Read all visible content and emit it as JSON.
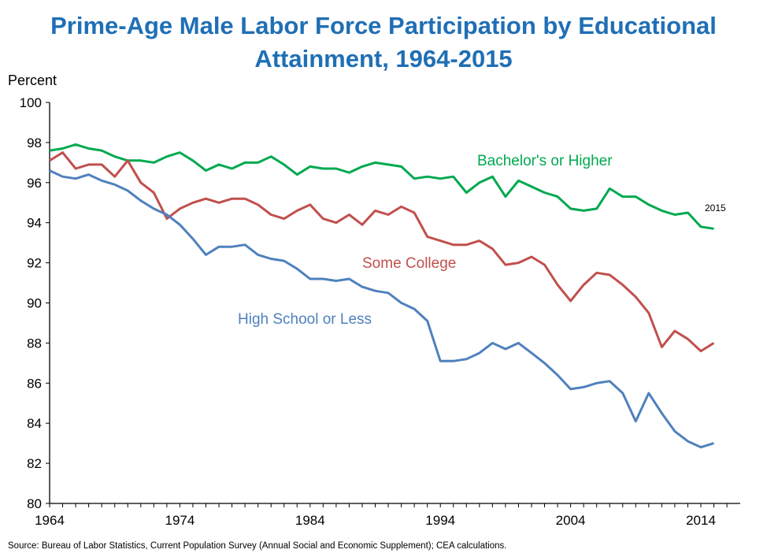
{
  "chart_data": {
    "type": "line",
    "title": "Prime-Age Male Labor Force Participation by Educational Attainment, 1964-2015",
    "title_lines": [
      "Prime-Age Male Labor Force Participation by Educational",
      "Attainment, 1964-2015"
    ],
    "ylabel": "Percent",
    "xlabel": "",
    "ylim": [
      80,
      100
    ],
    "xlim": [
      1964,
      2016
    ],
    "yticks": [
      80,
      82,
      84,
      86,
      88,
      90,
      92,
      94,
      96,
      98,
      100
    ],
    "xticks": [
      1964,
      1974,
      1984,
      1994,
      2004,
      2014
    ],
    "grid": false,
    "annotation": "2015",
    "x_start": 1964,
    "series": [
      {
        "name": "Bachelor's or Higher",
        "color": "#00A94F",
        "values": [
          97.6,
          97.7,
          97.9,
          97.7,
          97.6,
          97.3,
          97.1,
          97.1,
          97.0,
          97.3,
          97.5,
          97.1,
          96.6,
          96.9,
          96.7,
          97.0,
          97.0,
          97.3,
          96.9,
          96.4,
          96.8,
          96.7,
          96.7,
          96.5,
          96.8,
          97.0,
          96.9,
          96.8,
          96.2,
          96.3,
          96.2,
          96.3,
          95.5,
          96.0,
          96.3,
          95.3,
          96.1,
          95.8,
          95.5,
          95.3,
          94.7,
          94.6,
          94.7,
          95.7,
          95.3,
          95.3,
          94.9,
          94.6,
          94.4,
          94.5,
          93.8,
          93.7
        ]
      },
      {
        "name": "Some College",
        "color": "#C0504D",
        "values": [
          97.1,
          97.5,
          96.7,
          96.9,
          96.9,
          96.3,
          97.1,
          96.0,
          95.5,
          94.2,
          94.7,
          95.0,
          95.2,
          95.0,
          95.2,
          95.2,
          94.9,
          94.4,
          94.2,
          94.6,
          94.9,
          94.2,
          94.0,
          94.4,
          93.9,
          94.6,
          94.4,
          94.8,
          94.5,
          93.3,
          93.1,
          92.9,
          92.9,
          93.1,
          92.7,
          91.9,
          92.0,
          92.3,
          91.9,
          90.9,
          90.1,
          90.9,
          91.5,
          91.4,
          90.9,
          90.3,
          89.5,
          87.8,
          88.6,
          88.2,
          87.6,
          88.0
        ]
      },
      {
        "name": "High School or Less",
        "color": "#4F81BD",
        "values": [
          96.6,
          96.3,
          96.2,
          96.4,
          96.1,
          95.9,
          95.6,
          95.1,
          94.7,
          94.4,
          93.9,
          93.2,
          92.4,
          92.8,
          92.8,
          92.9,
          92.4,
          92.2,
          92.1,
          91.7,
          91.2,
          91.2,
          91.1,
          91.2,
          90.8,
          90.6,
          90.5,
          90.0,
          89.7,
          89.1,
          87.1,
          87.1,
          87.2,
          87.5,
          88.0,
          87.7,
          88.0,
          87.5,
          87.0,
          86.4,
          85.7,
          85.8,
          86.0,
          86.1,
          85.5,
          84.1,
          85.5,
          84.5,
          83.6,
          83.1,
          82.8,
          83.0
        ]
      }
    ],
    "source": "Source: Bureau of Labor Statistics, Current Population Survey (Annual Social and Economic Supplement); CEA calculations."
  }
}
